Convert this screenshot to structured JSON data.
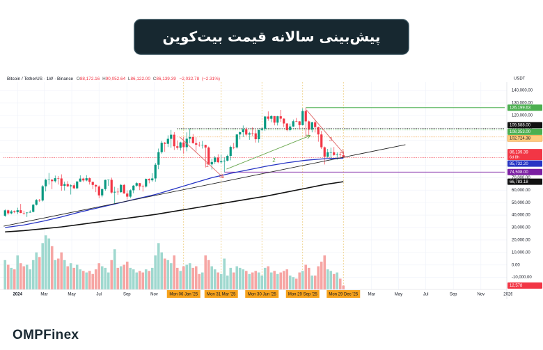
{
  "header": {
    "title": "پیش‌بینی سالانه قیمت بیت‌کوین"
  },
  "brand": "OMPFinex",
  "chart_data": {
    "type": "candlestick",
    "symbol": "Bitcoin / TetherUS · 1W · Binance",
    "ohlc": [
      {
        "key": "O",
        "value": 88172.16,
        "label": "88,172.16"
      },
      {
        "key": "H",
        "value": 90052.64,
        "label": "90,052.64"
      },
      {
        "key": "L",
        "value": 86122.0,
        "label": "86,122.00"
      },
      {
        "key": "C",
        "value": 86139.39,
        "label": "86,139.39"
      }
    ],
    "change": {
      "value": -2032.78,
      "label": "−2,032.78"
    },
    "change_pct": {
      "value": -2.31,
      "label": "(−2.31%)"
    },
    "unit": "USDT",
    "xlim": [
      -0.5,
      159.5
    ],
    "ylim": [
      -19700,
      145600
    ],
    "grid": true,
    "up_color": "#089981",
    "down_color": "#f23645",
    "yticks": [
      {
        "value": 140000,
        "label": "140,000.00"
      },
      {
        "value": 130000,
        "label": "130,000.00"
      },
      {
        "value": 120000,
        "label": "120,000.00"
      },
      {
        "value": 110000,
        "label": "110,000.00"
      },
      {
        "value": 100000,
        "label": "100,000.00"
      },
      {
        "value": 90000,
        "label": "90,000.00"
      },
      {
        "value": 80000,
        "label": "80,000.00"
      },
      {
        "value": 70000,
        "label": "70,000.00"
      },
      {
        "value": 60000,
        "label": "60,000.00"
      },
      {
        "value": 50000,
        "label": "50,000.00"
      },
      {
        "value": 40000,
        "label": "40,000.00"
      },
      {
        "value": 30000,
        "label": "30,000.00"
      },
      {
        "value": 20000,
        "label": "20,000.00"
      },
      {
        "value": 10000,
        "label": "10,000.00"
      },
      {
        "value": 0,
        "label": "0.00"
      },
      {
        "value": -10000,
        "label": "-10,000.00"
      }
    ],
    "xticks": [
      {
        "value": 4,
        "label": "2024"
      },
      {
        "value": 12.5,
        "label": "Mar"
      },
      {
        "value": 21.3,
        "label": "May"
      },
      {
        "value": 30,
        "label": "Jul"
      },
      {
        "value": 38.9,
        "label": "Sep"
      },
      {
        "value": 47.6,
        "label": "Nov"
      },
      {
        "value": 57,
        "label": "Mon 06 Jan '25",
        "highlight": true
      },
      {
        "value": 69,
        "label": "Mon 31 Mar '25",
        "highlight": true
      },
      {
        "value": 82,
        "label": "Mon 30 Jun '25",
        "highlight": true
      },
      {
        "value": 95,
        "label": "Mon 29 Sep '25",
        "highlight": true
      },
      {
        "value": 108,
        "label": "Mon 29 Dec '25",
        "highlight": true
      },
      {
        "value": 117,
        "label": "Mar"
      },
      {
        "value": 125.6,
        "label": "May"
      },
      {
        "value": 134.3,
        "label": "Jul"
      },
      {
        "value": 143.1,
        "label": "Sep"
      },
      {
        "value": 151.9,
        "label": "Nov"
      },
      {
        "value": 160.6,
        "label": "2026"
      }
    ],
    "categories": [
      null,
      null,
      null,
      null,
      null,
      null,
      null,
      null,
      null,
      null,
      null,
      null,
      null,
      null,
      null,
      null,
      null,
      null,
      null,
      null,
      null,
      null,
      null,
      null,
      null,
      null,
      null,
      null,
      null,
      null,
      null,
      null,
      null,
      null,
      null,
      null,
      null,
      null,
      null,
      null,
      null,
      null,
      null,
      null,
      null,
      null,
      null,
      null,
      null,
      null,
      null,
      null,
      null,
      null,
      null,
      null,
      null,
      null,
      null,
      null,
      null,
      null,
      null,
      null,
      null,
      null,
      null,
      null,
      null,
      null,
      null,
      null,
      null,
      null,
      null,
      null,
      null,
      null,
      null,
      null,
      null,
      null,
      null,
      null,
      null,
      null,
      null,
      null,
      null,
      null,
      null,
      null,
      null,
      null,
      null,
      null,
      null,
      null,
      null,
      null,
      null,
      null,
      null,
      null,
      null,
      null,
      null,
      null,
      null
    ],
    "candles": {
      "open": [
        39500,
        43800,
        41400,
        43000,
        42300,
        43900,
        41700,
        41600,
        42000,
        42600,
        48300,
        52100,
        51700,
        63100,
        68300,
        68400,
        67200,
        69600,
        69400,
        63500,
        64900,
        63100,
        63900,
        61500,
        66900,
        69300,
        67800,
        69600,
        66600,
        64200,
        62900,
        55800,
        60800,
        68200,
        68300,
        58100,
        58700,
        58400,
        64200,
        57300,
        54800,
        59900,
        63600,
        65600,
        63000,
        62900,
        69000,
        67900,
        69400,
        80400,
        90500,
        98000,
        97200,
        101200,
        104500,
        95200,
        94000,
        98300,
        94500,
        101300,
        102600,
        97700,
        96500,
        96100,
        96300,
        94200,
        80700,
        82600,
        86100,
        82400,
        83200,
        83700,
        87500,
        94700,
        94300,
        104700,
        106500,
        109000,
        104600,
        105700,
        105600,
        100900,
        108400,
        109200,
        119100,
        117300,
        119400,
        114200,
        119300,
        117400,
        113500,
        108300,
        111100,
        115300,
        115200,
        112200,
        123500,
        115200,
        108700,
        114500,
        110600,
        104700,
        94400,
        86800,
        90400,
        90400,
        88200,
        88600,
        88172.16
      ],
      "high": [
        44700,
        44400,
        44000,
        43700,
        45900,
        48900,
        43500,
        42300,
        43800,
        48900,
        52800,
        52900,
        64000,
        69200,
        73800,
        68900,
        71700,
        71300,
        72700,
        66900,
        67200,
        64700,
        65500,
        67400,
        71900,
        70000,
        72000,
        70200,
        66900,
        64500,
        63800,
        61400,
        68500,
        68500,
        70000,
        62700,
        61800,
        65000,
        64900,
        59800,
        60600,
        64100,
        66500,
        65800,
        64400,
        69400,
        69500,
        73600,
        81800,
        93400,
        99500,
        98700,
        104000,
        108300,
        106500,
        99900,
        98900,
        102700,
        106400,
        109600,
        105000,
        102500,
        98800,
        99500,
        96500,
        95000,
        85300,
        87400,
        88800,
        88500,
        86100,
        88500,
        95700,
        97900,
        104900,
        107100,
        111900,
        110400,
        106800,
        110400,
        108900,
        108500,
        110500,
        119500,
        123200,
        120200,
        119500,
        119600,
        124400,
        117600,
        113700,
        113400,
        116700,
        117900,
        115400,
        125700,
        126199.63,
        115900,
        114900,
        116400,
        111000,
        107500,
        95000,
        93100,
        94100,
        94600,
        90300,
        90400,
        90052.64
      ],
      "low": [
        38500,
        40200,
        40600,
        41500,
        40800,
        41500,
        40300,
        38500,
        41900,
        42200,
        47700,
        50600,
        50900,
        59000,
        64500,
        60800,
        66100,
        64500,
        59600,
        59700,
        62500,
        56500,
        60800,
        60700,
        66600,
        66600,
        67100,
        64500,
        60800,
        58400,
        53500,
        54300,
        59600,
        63500,
        57200,
        49000,
        56300,
        57900,
        57200,
        52500,
        53600,
        57500,
        62700,
        60000,
        58900,
        62100,
        65500,
        66800,
        66800,
        76800,
        89300,
        90800,
        94600,
        94000,
        92200,
        92500,
        91800,
        89300,
        91200,
        97800,
        97400,
        91200,
        94900,
        93400,
        78200,
        80200,
        76600,
        81100,
        81600,
        81300,
        74508,
        83100,
        83900,
        92900,
        93400,
        100700,
        102600,
        103600,
        100400,
        103400,
        98200,
        98200,
        107300,
        107500,
        115700,
        114500,
        112000,
        111900,
        114700,
        110700,
        107300,
        107300,
        110600,
        114700,
        108700,
        111800,
        102000,
        103500,
        106400,
        106300,
        98900,
        93000,
        80600,
        86000,
        83800,
        87600,
        84500,
        86400,
        86122
      ],
      "close": [
        43800,
        41400,
        43000,
        42300,
        43900,
        41700,
        41600,
        42000,
        42600,
        48300,
        52100,
        51700,
        63100,
        68300,
        68400,
        67200,
        69600,
        69400,
        63500,
        64900,
        63100,
        63900,
        61500,
        66900,
        69300,
        67800,
        69600,
        66600,
        64200,
        62900,
        55800,
        60800,
        68200,
        68300,
        58100,
        58700,
        58400,
        64200,
        57300,
        54800,
        59900,
        63600,
        65600,
        63000,
        62900,
        69000,
        67900,
        69400,
        80400,
        90500,
        98000,
        97200,
        101200,
        104500,
        95200,
        94000,
        98300,
        94500,
        101300,
        102600,
        97700,
        96500,
        96100,
        96300,
        94200,
        80700,
        82600,
        86100,
        82400,
        83200,
        83700,
        87500,
        94700,
        94300,
        104700,
        106500,
        109000,
        104600,
        105700,
        105600,
        100900,
        108400,
        109200,
        119100,
        117300,
        119400,
        114200,
        119300,
        117400,
        113500,
        108300,
        111100,
        115300,
        115200,
        112200,
        123500,
        115200,
        108700,
        114500,
        110600,
        104700,
        94400,
        86800,
        90400,
        90400,
        88200,
        88600,
        88172.16,
        86139.39
      ]
    },
    "volume": {
      "ylim": [
        0,
        180000
      ],
      "up_color": "#9fd8cf",
      "down_color": "#f6a5a3",
      "values": [
        95000,
        80000,
        70000,
        65000,
        110000,
        85000,
        75000,
        80000,
        65000,
        95000,
        120000,
        105000,
        150000,
        175000,
        165000,
        140000,
        95000,
        100000,
        120000,
        95000,
        75000,
        85000,
        70000,
        80000,
        65000,
        60000,
        55000,
        60000,
        50000,
        65000,
        85000,
        75000,
        70000,
        55000,
        95000,
        130000,
        70000,
        75000,
        80000,
        90000,
        70000,
        65000,
        55000,
        60000,
        55000,
        65000,
        60000,
        70000,
        110000,
        150000,
        120000,
        100000,
        95000,
        85000,
        110000,
        70000,
        60000,
        75000,
        80000,
        85000,
        70000,
        75000,
        50000,
        55000,
        110000,
        95000,
        75000,
        65000,
        55000,
        50000,
        100000,
        45000,
        70000,
        55000,
        75000,
        70000,
        65000,
        60000,
        50000,
        55000,
        60000,
        55000,
        45000,
        70000,
        75000,
        55000,
        60000,
        50000,
        55000,
        60000,
        65000,
        45000,
        40000,
        35000,
        55000,
        60000,
        80000,
        70000,
        45000,
        45000,
        75000,
        90000,
        110000,
        65000,
        60000,
        50000,
        55000,
        35000,
        12578
      ]
    },
    "series": [
      {
        "color": "#2634c4",
        "x": [
          0,
          6,
          12,
          18,
          24,
          30,
          36,
          42,
          48,
          54,
          60,
          66,
          72,
          78,
          84,
          90,
          96,
          102,
          108
        ],
        "values": [
          30000,
          32000,
          35000,
          38500,
          42500,
          46000,
          49500,
          53000,
          56500,
          61000,
          65500,
          70000,
          73500,
          76500,
          79500,
          82000,
          84000,
          85200,
          85732.2
        ]
      },
      {
        "color": "#111111",
        "x": [
          0,
          6,
          12,
          18,
          24,
          30,
          36,
          42,
          48,
          54,
          60,
          66,
          72,
          78,
          84,
          90,
          96,
          102,
          108
        ],
        "values": [
          26500,
          27500,
          29000,
          30500,
          32500,
          34500,
          36500,
          38500,
          40500,
          43000,
          45500,
          48000,
          50500,
          53000,
          55500,
          58500,
          61500,
          64500,
          66783.18
        ]
      }
    ],
    "trendlines": [
      {
        "color": "#222222",
        "x": [
          -0.44,
          127.8
        ],
        "values": [
          31100,
          96500
        ]
      }
    ],
    "arrows": [
      {
        "label": "1",
        "color": "#e06666",
        "x": [
          55.8,
          69.6
        ],
        "values": [
          102600,
          70200
        ]
      },
      {
        "label": "2",
        "color": "#6aa84f",
        "x": [
          70.7,
          97.3
        ],
        "values": [
          76900,
          103700
        ]
      },
      {
        "label": "3",
        "color": "#e06666",
        "x": [
          96.2,
          108
        ],
        "values": [
          124400,
          89800
        ]
      }
    ],
    "price_labels": [
      {
        "value": 126199.63,
        "label": "126,199.63",
        "color": "#4caf50",
        "line": "solid",
        "x_start": 96
      },
      {
        "value": 109588.0,
        "label": "109,588.00",
        "color": "#111111",
        "line": "dotted",
        "x_start": 55
      },
      {
        "value": 108353.0,
        "label": "108,353.00",
        "color": "#4caf50",
        "line": "dotted",
        "x_start": 55
      },
      {
        "value": 102724.38,
        "label": "102,724.38",
        "color": "#ffcc80",
        "text_color": "#111111",
        "line": "dotted",
        "x_start": 55
      },
      {
        "value": 86139.39,
        "label": "86,139.39",
        "sublabel": "6d 8h",
        "color": "#f23645",
        "line": "dotted",
        "x_start": -0.5
      },
      {
        "value": 85732.2,
        "label": "85,732.20",
        "color": "#2634c4"
      },
      {
        "value": 74508.0,
        "label": "74,508.00",
        "color": "#7b1fa2",
        "line": "solid",
        "x_start": 70
      },
      {
        "value": 66783.18,
        "label": "66,783.18",
        "color": "#111111"
      },
      {
        "value": 12578,
        "label": "12,578",
        "color": "#f23645",
        "axis": "volume"
      }
    ]
  }
}
